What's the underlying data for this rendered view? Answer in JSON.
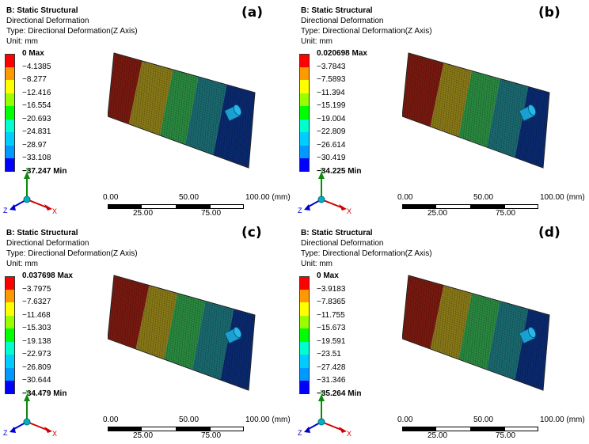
{
  "colors": [
    "#ff0000",
    "#ff9900",
    "#ffff00",
    "#99ff00",
    "#00ff00",
    "#00ffcc",
    "#00ccff",
    "#0099ff",
    "#0000ff"
  ],
  "header": {
    "title": "B: Static Structural",
    "line2": "Directional Deformation",
    "line3": "Type: Directional Deformation(Z Axis)",
    "line4": "Unit: mm"
  },
  "axes": {
    "y": "Y",
    "x": "X",
    "z": "Z"
  },
  "scale": {
    "t0": "0.00",
    "t50": "50.00",
    "t100": "100.00 (mm)",
    "t25": "25.00",
    "t75": "75.00"
  },
  "panels": [
    {
      "label": "(a)",
      "legend": [
        "0 Max",
        "−4.1385",
        "−8.277",
        "−12.416",
        "−16.554",
        "−20.693",
        "−24.831",
        "−28.97",
        "−33.108",
        "−37.247 Min"
      ],
      "bands": [
        0.2,
        0.42,
        0.6,
        0.8,
        1.0
      ]
    },
    {
      "label": "(b)",
      "legend": [
        "0.020698 Max",
        "−3.7843",
        "−7.5893",
        "−11.394",
        "−15.199",
        "−19.004",
        "−22.809",
        "−26.614",
        "−30.419",
        "−34.225 Min"
      ],
      "bands": [
        0.25,
        0.45,
        0.65,
        0.85,
        1.0
      ]
    },
    {
      "label": "(c)",
      "legend": [
        "0.037698 Max",
        "−3.7975",
        "−7.6327",
        "−11.468",
        "−15.303",
        "−19.138",
        "−22.973",
        "−26.809",
        "−30.644",
        "−34.479 Min"
      ],
      "bands": [
        0.25,
        0.45,
        0.65,
        0.85,
        1.0
      ]
    },
    {
      "label": "(d)",
      "legend": [
        "0 Max",
        "−3.9183",
        "−7.8365",
        "−11.755",
        "−15.673",
        "−19.591",
        "−23.51",
        "−27.428",
        "−31.346",
        "−35.264 Min"
      ],
      "bands": [
        0.25,
        0.45,
        0.65,
        0.85,
        1.0
      ]
    }
  ]
}
